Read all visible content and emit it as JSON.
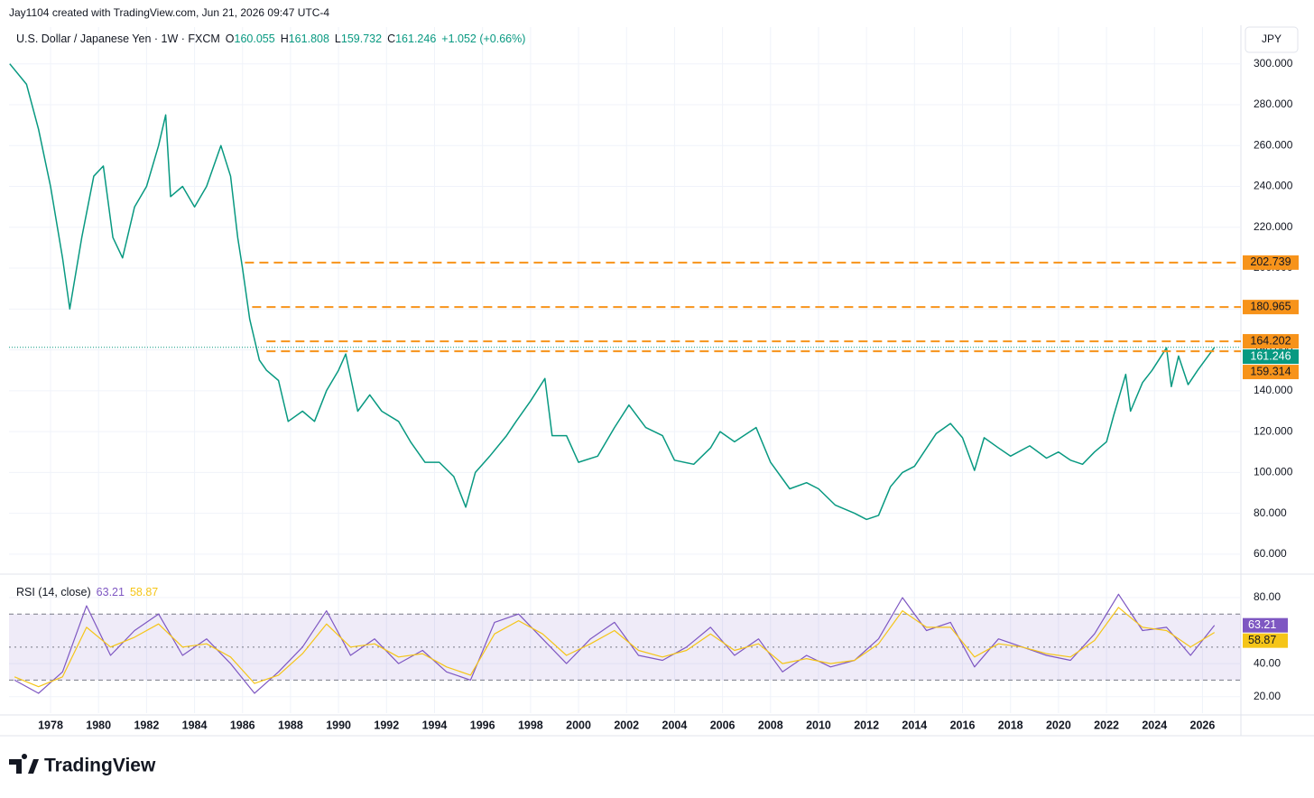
{
  "header": {
    "credit": "Jay1104 created with TradingView.com, Jun 21, 2026 09:47 UTC-4",
    "brand": "TradingView"
  },
  "chart_data": [
    {
      "type": "line",
      "title": "U.S. Dollar / Japanese Yen · 1W · FXCM",
      "currency": "JPY",
      "ohlc": [
        {
          "label": "O",
          "value": 160.055
        },
        {
          "label": "H",
          "value": 161.808
        },
        {
          "label": "L",
          "value": 159.732
        },
        {
          "label": "C",
          "value": 161.246
        }
      ],
      "change": "+1.052 (+0.66%)",
      "x": [
        1976.3,
        1977,
        1977.5,
        1978,
        1978.5,
        1978.8,
        1979.3,
        1979.8,
        1980.2,
        1980.6,
        1981,
        1981.5,
        1982,
        1982.5,
        1982.8,
        1983,
        1983.5,
        1984,
        1984.5,
        1985.1,
        1985.5,
        1985.8,
        1986,
        1986.3,
        1986.7,
        1987,
        1987.5,
        1987.9,
        1988.5,
        1989,
        1989.5,
        1990,
        1990.3,
        1990.8,
        1991.3,
        1991.8,
        1992.5,
        1993,
        1993.6,
        1994.2,
        1994.8,
        1995.3,
        1995.7,
        1996.3,
        1997,
        1997.4,
        1998,
        1998.6,
        1998.9,
        1999.5,
        2000,
        2000.8,
        2001.5,
        2002.1,
        2002.8,
        2003.5,
        2004,
        2004.8,
        2005.5,
        2005.9,
        2006.5,
        2007.4,
        2008,
        2008.8,
        2009.5,
        2010,
        2010.7,
        2011.5,
        2012,
        2012.5,
        2013,
        2013.5,
        2014,
        2014.9,
        2015.5,
        2016,
        2016.5,
        2016.9,
        2017.5,
        2018,
        2018.8,
        2019.5,
        2020,
        2020.5,
        2021,
        2021.5,
        2022,
        2022.3,
        2022.8,
        2023,
        2023.5,
        2023.9,
        2024.5,
        2024.7,
        2025,
        2025.4,
        2025.8,
        2026.3,
        2026.5
      ],
      "series": [
        {
          "color": "#089981",
          "values": [
            300,
            290,
            268,
            240,
            205,
            180,
            215,
            245,
            250,
            215,
            205,
            230,
            240,
            260,
            275,
            235,
            240,
            230,
            240,
            260,
            245,
            215,
            200,
            175,
            155,
            150,
            145,
            125,
            130,
            125,
            140,
            150,
            158,
            130,
            138,
            130,
            125,
            115,
            105,
            105,
            98,
            83,
            100,
            108,
            118,
            125,
            135,
            146,
            118,
            118,
            105,
            108,
            122,
            133,
            122,
            118,
            106,
            104,
            112,
            120,
            115,
            122,
            105,
            92,
            95,
            92,
            84,
            80,
            77,
            79,
            93,
            100,
            103,
            119,
            124,
            117,
            101,
            117,
            112,
            108,
            113,
            107,
            110,
            106,
            104,
            110,
            115,
            128,
            148,
            130,
            144,
            150,
            161,
            142,
            157,
            143,
            150,
            158,
            161.246
          ]
        }
      ],
      "levels": [
        {
          "value": 202.739,
          "from": 1986.1,
          "color": "#f7931a"
        },
        {
          "value": 180.965,
          "from": 1986.4,
          "color": "#f7931a"
        },
        {
          "value": 164.202,
          "from": 1987,
          "color": "#f7931a"
        },
        {
          "value": 159.314,
          "from": 1987,
          "color": "#f7931a"
        }
      ],
      "last": {
        "value": 161.246,
        "color": "#089981"
      },
      "xlim": [
        1976.27,
        2027.6
      ],
      "ylim": [
        52,
        318
      ],
      "xticks": [
        1978,
        1980,
        1982,
        1984,
        1986,
        1988,
        1990,
        1992,
        1994,
        1996,
        1998,
        2000,
        2002,
        2004,
        2006,
        2008,
        2010,
        2012,
        2014,
        2016,
        2018,
        2020,
        2022,
        2024,
        2026
      ],
      "yticks": [
        {
          "value": 60,
          "label": "60.000"
        },
        {
          "value": 80,
          "label": "80.000"
        },
        {
          "value": 100,
          "label": "100.000"
        },
        {
          "value": 120,
          "label": "120.000"
        },
        {
          "value": 140,
          "label": "140.000"
        },
        {
          "value": 160,
          "label": "160.000"
        },
        {
          "value": 180,
          "label": "180.000"
        },
        {
          "value": 200,
          "label": "200.000"
        },
        {
          "value": 220,
          "label": "220.000"
        },
        {
          "value": 240,
          "label": "240.000"
        },
        {
          "value": 260,
          "label": "260.000"
        },
        {
          "value": 280,
          "label": "280.000"
        },
        {
          "value": 300,
          "label": "300.000"
        }
      ],
      "grid": true
    },
    {
      "type": "line",
      "title": "RSI (14, close)",
      "x": [
        1976.5,
        1977.5,
        1978.5,
        1979.5,
        1980.5,
        1981.5,
        1982.5,
        1983.5,
        1984.5,
        1985.5,
        1986.5,
        1987.5,
        1988.5,
        1989.5,
        1990.5,
        1991.5,
        1992.5,
        1993.5,
        1994.5,
        1995.5,
        1996.5,
        1997.5,
        1998.5,
        1999.5,
        2000.5,
        2001.5,
        2002.5,
        2003.5,
        2004.5,
        2005.5,
        2006.5,
        2007.5,
        2008.5,
        2009.5,
        2010.5,
        2011.5,
        2012.5,
        2013.5,
        2014.5,
        2015.5,
        2016.5,
        2017.5,
        2018.5,
        2019.5,
        2020.5,
        2021.5,
        2022.5,
        2023.5,
        2024.5,
        2025.5,
        2026.5
      ],
      "series": [
        {
          "color": "#7e57c2",
          "values": [
            30,
            22,
            35,
            75,
            45,
            60,
            70,
            45,
            55,
            40,
            22,
            35,
            50,
            72,
            45,
            55,
            40,
            48,
            35,
            30,
            65,
            70,
            55,
            40,
            55,
            65,
            45,
            42,
            50,
            62,
            45,
            55,
            35,
            45,
            38,
            42,
            55,
            80,
            60,
            65,
            38,
            55,
            50,
            45,
            42,
            58,
            82,
            60,
            62,
            45,
            63.21
          ]
        },
        {
          "color": "#f5c518",
          "values": [
            32,
            26,
            32,
            62,
            50,
            56,
            64,
            50,
            52,
            44,
            28,
            33,
            46,
            64,
            50,
            52,
            44,
            46,
            38,
            33,
            58,
            66,
            58,
            45,
            52,
            60,
            48,
            44,
            48,
            58,
            48,
            52,
            40,
            43,
            40,
            42,
            52,
            72,
            62,
            62,
            44,
            52,
            50,
            46,
            44,
            54,
            74,
            62,
            60,
            50,
            58.87
          ]
        }
      ],
      "band": {
        "upper": 70,
        "lower": 30,
        "mid": 50
      },
      "xlim": [
        1976.27,
        2027.6
      ],
      "ylim": [
        10,
        92
      ],
      "yticks": [
        {
          "value": 20,
          "label": "20.00"
        },
        {
          "value": 40,
          "label": "40.00"
        },
        {
          "value": 80,
          "label": "80.00"
        }
      ]
    }
  ]
}
